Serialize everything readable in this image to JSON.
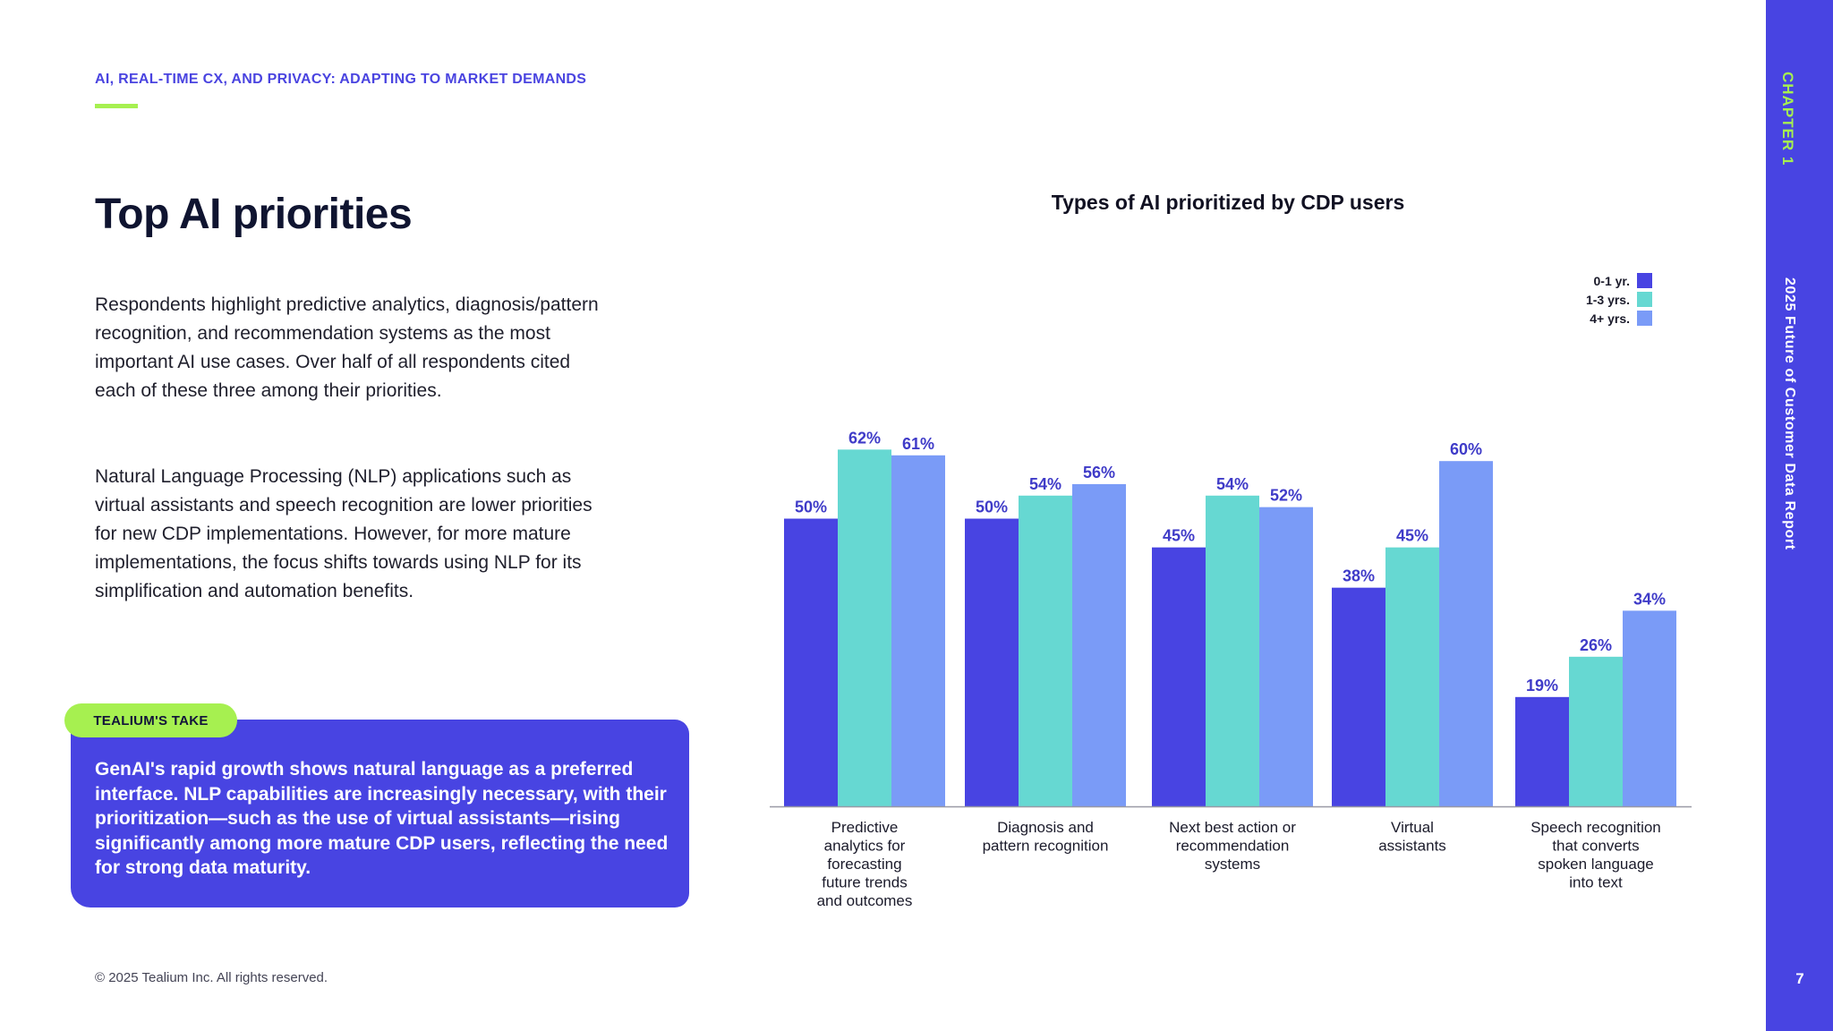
{
  "header": {
    "kicker": "AI, REAL-TIME CX, AND PRIVACY: ADAPTING TO MARKET DEMANDS",
    "title": "Top AI priorities"
  },
  "body": {
    "paragraph1": "Respondents highlight predictive analytics, diagnosis/pattern recognition, and recommendation systems as the most important AI use cases. Over half of all respondents cited each of these three among their priorities.",
    "paragraph2": "Natural Language Processing (NLP) applications such as virtual assistants and speech recognition are lower priorities for new CDP implementations. However, for more mature implementations, the focus shifts towards using NLP for its simplification and automation benefits."
  },
  "take": {
    "badge": "TEALIUM'S TAKE",
    "text": "GenAI's rapid growth shows natural language as a preferred interface. NLP capabilities are increasingly necessary, with their prioritization—such as the use of virtual assistants—rising significantly among more mature CDP users, reflecting the need for strong data maturity."
  },
  "footer": {
    "copyright": "© 2025 Tealium Inc. All rights reserved.",
    "page_number": "7"
  },
  "rail": {
    "chapter": "CHAPTER 1",
    "report": "2025 Future of Customer Data Report"
  },
  "colors": {
    "primary": "#4844e2",
    "accent": "#a6f050",
    "series_0_1": "#4844e2",
    "series_1_3": "#66d8d2",
    "series_4_plus": "#7a9bf7"
  },
  "chart_data": {
    "type": "bar",
    "title": "Types of AI prioritized by CDP users",
    "xlabel": "",
    "ylabel": "",
    "ylim": [
      0,
      100
    ],
    "grid": false,
    "legend_position": "top-right",
    "categories": [
      [
        "Predictive",
        "analytics for",
        "forecasting",
        "future trends",
        "and outcomes"
      ],
      [
        "Diagnosis and",
        "pattern recognition"
      ],
      [
        "Next best action or",
        "recommendation",
        "systems"
      ],
      [
        "Virtual",
        "assistants"
      ],
      [
        "Speech recognition",
        "that converts",
        "spoken language",
        "into text"
      ]
    ],
    "series": [
      {
        "name": "0-1 yr.",
        "color": "#4844e2",
        "values": [
          50,
          50,
          45,
          38,
          19
        ],
        "labels": [
          "50%",
          "50%",
          "45%",
          "38%",
          "19%"
        ]
      },
      {
        "name": "1-3 yrs.",
        "color": "#66d8d2",
        "values": [
          62,
          54,
          54,
          45,
          26
        ],
        "labels": [
          "62%",
          "54%",
          "54%",
          "45%",
          "26%"
        ]
      },
      {
        "name": "4+ yrs.",
        "color": "#7a9bf7",
        "values": [
          61,
          56,
          52,
          60,
          34
        ],
        "labels": [
          "61%",
          "56%",
          "52%",
          "60%",
          "34%"
        ]
      }
    ]
  }
}
